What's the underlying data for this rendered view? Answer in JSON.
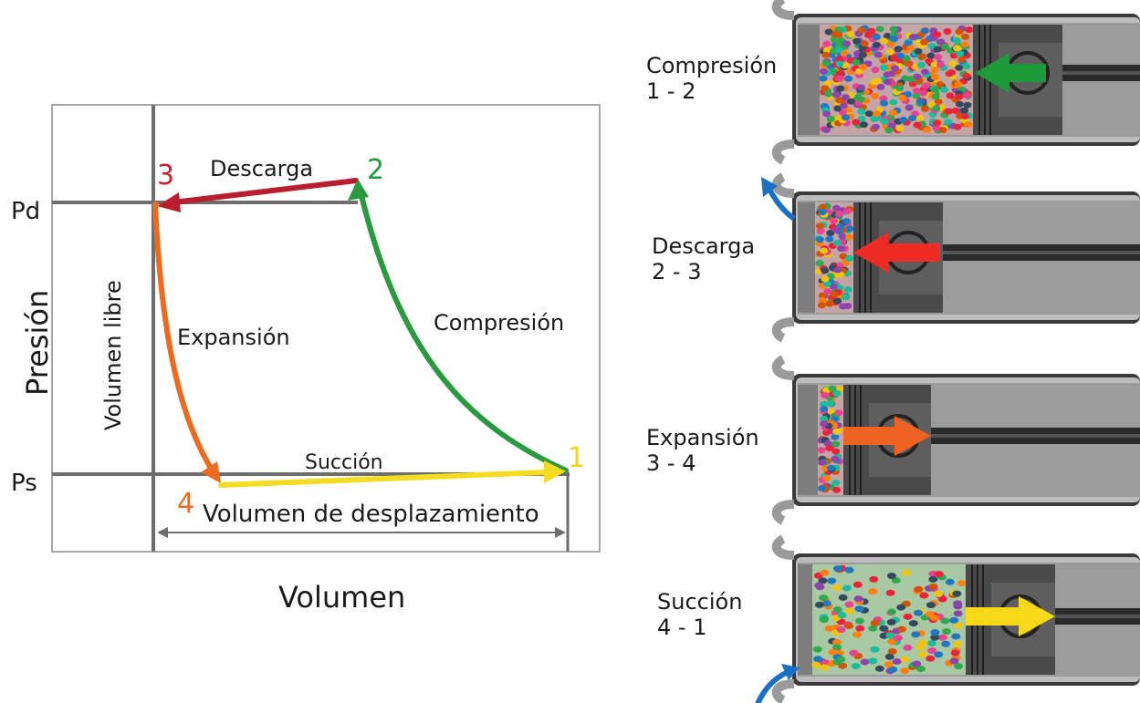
{
  "diagram": {
    "axes": {
      "y_label": "Presión",
      "x_label": "Volumen",
      "pd_label": "Pd",
      "ps_label": "Ps",
      "free_volume_label": "Volumen libre",
      "displacement_label": "Volumen de desplazamiento"
    },
    "points": [
      {
        "id": "p1",
        "label": "1",
        "color": "#f2d21a"
      },
      {
        "id": "p2",
        "label": "2",
        "color": "#1f9a3c"
      },
      {
        "id": "p3",
        "label": "3",
        "color": "#c8202f"
      },
      {
        "id": "p4",
        "label": "4",
        "color": "#ee6a1f"
      }
    ],
    "curves": [
      {
        "id": "compresion",
        "label": "Compresión",
        "color": "#2a9a3e"
      },
      {
        "id": "descarga",
        "label": "Descarga",
        "color": "#b81e2d"
      },
      {
        "id": "expansion",
        "label": "Expansión",
        "color": "#ee6a1f"
      },
      {
        "id": "succion",
        "label": "Succión",
        "color": "#f4dc22"
      }
    ]
  },
  "stages": [
    {
      "title": "Compresión",
      "range": "1 - 2",
      "arrow_color": "#1e9a3a",
      "valve_arrow_color": ""
    },
    {
      "title": "Descarga",
      "range": "2 - 3",
      "arrow_color": "#ee2b24",
      "valve_arrow_color": "#1b6fc4"
    },
    {
      "title": "Expansión",
      "range": "3 - 4",
      "arrow_color": "#ee6322",
      "valve_arrow_color": ""
    },
    {
      "title": "Succión",
      "range": "4 - 1",
      "arrow_color": "#f7d81a",
      "valve_arrow_color": "#1b6fc4"
    }
  ]
}
